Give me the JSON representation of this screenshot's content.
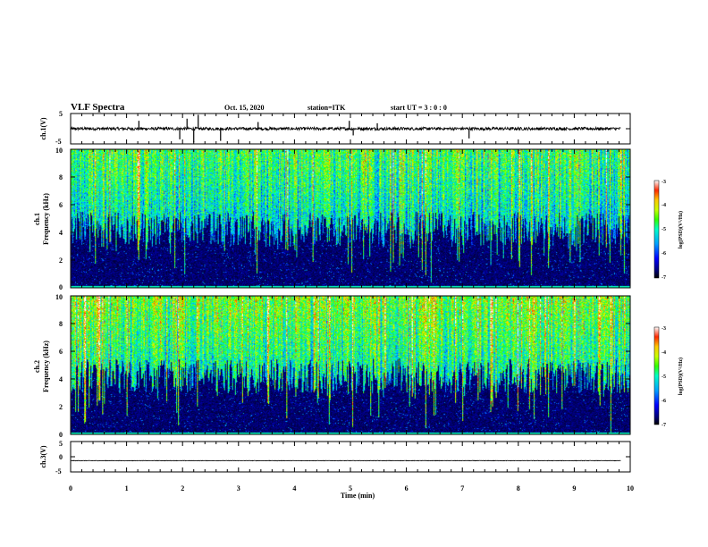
{
  "header": {
    "title": "VLF Spectra",
    "date": "Oct. 15, 2020",
    "station": "station=ITK",
    "start_ut": "start UT =  3 : 0  : 0"
  },
  "chart_data": [
    {
      "type": "line",
      "panel": "ch1-waveform",
      "ylabel": "ch.1(V)",
      "yticks": [
        "5",
        "-5"
      ],
      "ylim": [
        -5,
        5
      ],
      "baseline": 0,
      "noise_amplitude": 0.5,
      "spikes": [
        {
          "t": 1.22,
          "v": 2.6
        },
        {
          "t": 1.95,
          "v": -3.5
        },
        {
          "t": 2.08,
          "v": 3.3
        },
        {
          "t": 2.2,
          "v": -4.5
        },
        {
          "t": 2.28,
          "v": 4.6
        },
        {
          "t": 2.68,
          "v": -4.0
        },
        {
          "t": 3.35,
          "v": 2.2
        },
        {
          "t": 4.98,
          "v": 2.6
        },
        {
          "t": 5.05,
          "v": -2.2
        },
        {
          "t": 5.48,
          "v": 1.8
        },
        {
          "t": 7.12,
          "v": -3.2
        }
      ]
    },
    {
      "type": "heatmap",
      "panel": "ch1-spectrogram",
      "ylabel_top": "ch.1",
      "ylabel": "Frequency (kHz)",
      "yticks": [
        "0",
        "2",
        "4",
        "6",
        "8",
        "10"
      ],
      "ylim": [
        0,
        10
      ],
      "colorbar": {
        "label": "log(PSD)(V²/Hz)",
        "ticks": [
          "-3",
          "-4",
          "-5",
          "-6",
          "-7"
        ],
        "range": [
          -7,
          -3
        ]
      }
    },
    {
      "type": "heatmap",
      "panel": "ch2-spectrogram",
      "ylabel_top": "ch.2",
      "ylabel": "Frequency (kHz)",
      "yticks": [
        "0",
        "2",
        "4",
        "6",
        "8",
        "10"
      ],
      "ylim": [
        0,
        10
      ],
      "colorbar": {
        "label": "log(PSD)(V²/Hz)",
        "ticks": [
          "-3",
          "-4",
          "-5",
          "-6",
          "-7"
        ],
        "range": [
          -7,
          -3
        ]
      }
    },
    {
      "type": "line",
      "panel": "ch3-waveform",
      "ylabel": "ch.3(V)",
      "yticks": [
        "5",
        "0",
        "-5"
      ],
      "ylim": [
        -5,
        5
      ],
      "baseline": -1.3,
      "noise_amplitude": 0.08,
      "spikes": []
    }
  ],
  "xaxis": {
    "label": "Time (min)",
    "ticks": [
      "0",
      "1",
      "2",
      "3",
      "4",
      "5",
      "6",
      "7",
      "8",
      "9",
      "10"
    ],
    "xlim": [
      0,
      10
    ]
  },
  "colors": {
    "colormap": [
      "#000000",
      "#00007a",
      "#0000ff",
      "#00a0ff",
      "#00ffc8",
      "#32ff00",
      "#c8ff00",
      "#ffc800",
      "#ff2800",
      "#ffffff"
    ],
    "trace": "#000000",
    "axes": "#000000"
  }
}
